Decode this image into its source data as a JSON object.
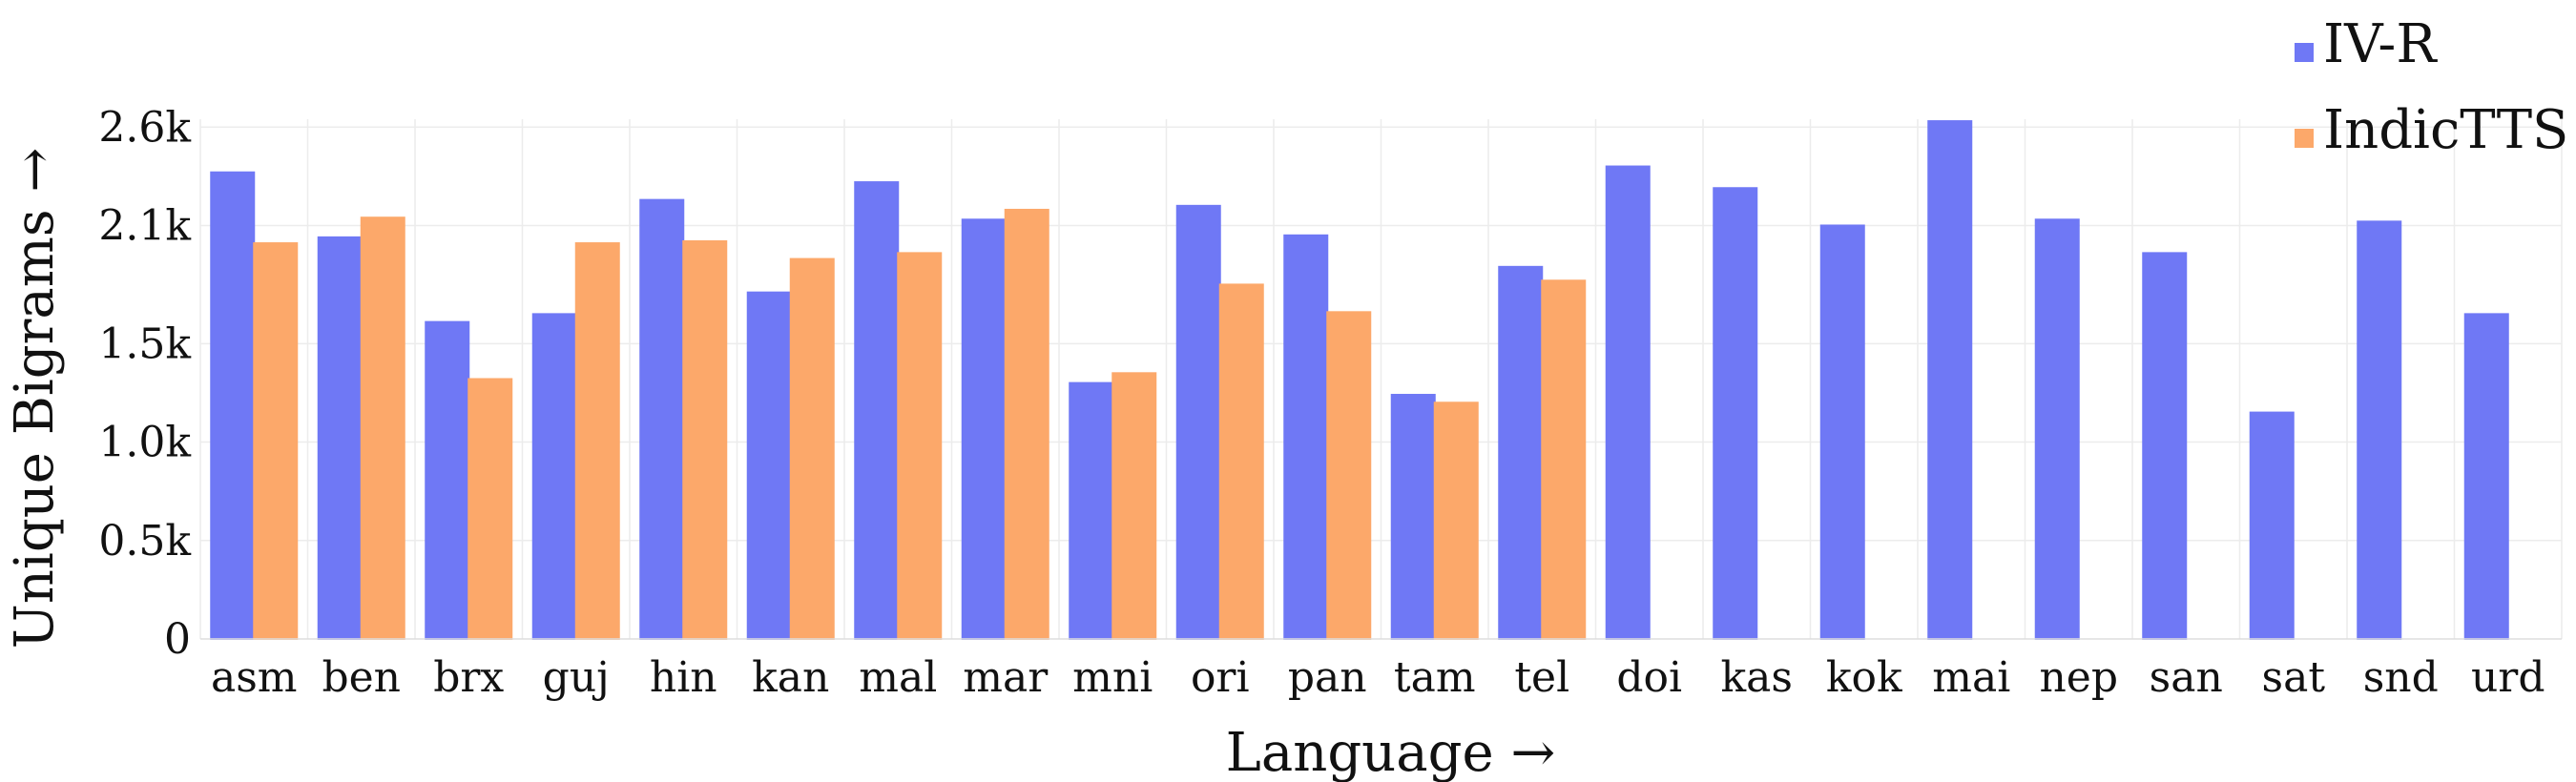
{
  "chart_data": {
    "type": "bar",
    "title": "",
    "xlabel": "Language →",
    "ylabel": "Unique Bigrams →",
    "categories": [
      "asm",
      "ben",
      "brx",
      "guj",
      "hin",
      "kan",
      "mal",
      "mar",
      "mni",
      "ori",
      "pan",
      "tam",
      "tel",
      "doi",
      "kas",
      "kok",
      "mai",
      "nep",
      "san",
      "sat",
      "snd",
      "urd"
    ],
    "series": [
      {
        "name": "IV-R",
        "color": "#6f78f5",
        "values": [
          2370,
          2040,
          1610,
          1650,
          2230,
          1760,
          2320,
          2130,
          1300,
          2200,
          2050,
          1240,
          1890,
          2400,
          2290,
          2100,
          2630,
          2130,
          1960,
          1150,
          2120,
          1650
        ]
      },
      {
        "name": "IndicTTS",
        "color": "#fca86a",
        "values": [
          2010,
          2140,
          1320,
          2010,
          2020,
          1930,
          1960,
          2180,
          1350,
          1800,
          1660,
          1200,
          1820,
          null,
          null,
          null,
          null,
          null,
          null,
          null,
          null,
          null
        ]
      }
    ],
    "yticks": [
      0,
      500,
      1000,
      1500,
      2100,
      2600
    ],
    "ytick_labels": [
      "0",
      "0.5k",
      "1.0k",
      "1.5k",
      "2.1k",
      "2.6k"
    ],
    "ylim": [
      0,
      2640
    ],
    "grid": true,
    "legend_position": "top-right"
  }
}
